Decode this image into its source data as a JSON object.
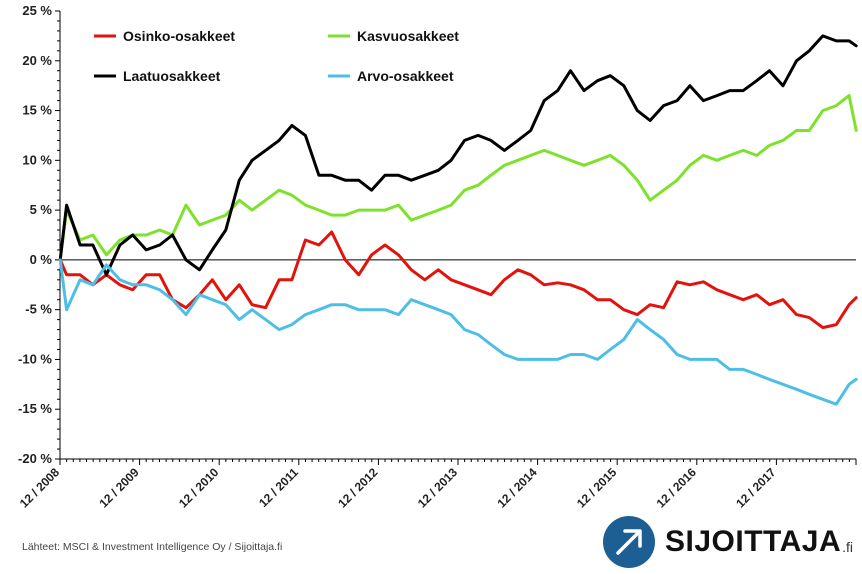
{
  "chart_data": {
    "type": "line",
    "title": "",
    "xlabel": "",
    "ylabel": "",
    "ylim": [
      -20,
      25
    ],
    "y_ticks": [
      "25 %",
      "20 %",
      "15 %",
      "10 %",
      "5 %",
      "0 %",
      "-5 %",
      "-10 %",
      "-15 %",
      "-20 %"
    ],
    "y_tick_values": [
      25,
      20,
      15,
      10,
      5,
      0,
      -5,
      -10,
      -15,
      -20
    ],
    "x_range": [
      2008.917,
      2018.917
    ],
    "x_ticks": [
      "12 / 2008",
      "12 / 2009",
      "12 / 2010",
      "12 / 2011",
      "12 / 2012",
      "12 / 2013",
      "12 / 2014",
      "12 / 2015",
      "12 / 2016",
      "12 / 2017"
    ],
    "x_tick_values": [
      2008.917,
      2009.917,
      2010.917,
      2011.917,
      2012.917,
      2013.917,
      2014.917,
      2015.917,
      2016.917,
      2017.917
    ],
    "grid": false,
    "legend_placement": "top",
    "series": [
      {
        "name": "Osinko-osakkeet",
        "color": "#e3120b",
        "x": [
          2008.92,
          2009.0,
          2009.17,
          2009.33,
          2009.5,
          2009.67,
          2009.83,
          2010.0,
          2010.17,
          2010.33,
          2010.5,
          2010.67,
          2010.83,
          2011.0,
          2011.17,
          2011.33,
          2011.5,
          2011.67,
          2011.83,
          2012.0,
          2012.17,
          2012.33,
          2012.5,
          2012.67,
          2012.83,
          2013.0,
          2013.17,
          2013.33,
          2013.5,
          2013.67,
          2013.83,
          2014.0,
          2014.17,
          2014.33,
          2014.5,
          2014.67,
          2014.83,
          2015.0,
          2015.17,
          2015.33,
          2015.5,
          2015.67,
          2015.83,
          2016.0,
          2016.17,
          2016.33,
          2016.5,
          2016.67,
          2016.83,
          2017.0,
          2017.17,
          2017.33,
          2017.5,
          2017.67,
          2017.83,
          2018.0,
          2018.17,
          2018.33,
          2018.5,
          2018.67,
          2018.83,
          2018.92
        ],
        "y": [
          0,
          -1.5,
          -1.5,
          -2.5,
          -1.5,
          -2.5,
          -3,
          -1.5,
          -1.5,
          -4,
          -4.8,
          -3.5,
          -2,
          -4,
          -2.5,
          -4.5,
          -4.8,
          -2,
          -2,
          2,
          1.5,
          2.8,
          0,
          -1.5,
          0.5,
          1.5,
          0.5,
          -1,
          -2,
          -1,
          -2,
          -2.5,
          -3,
          -3.5,
          -2,
          -1,
          -1.5,
          -2.5,
          -2.3,
          -2.5,
          -3,
          -4,
          -4,
          -5,
          -5.5,
          -4.5,
          -4.8,
          -2.2,
          -2.5,
          -2.2,
          -3,
          -3.5,
          -4,
          -3.5,
          -4.5,
          -4,
          -5.5,
          -5.8,
          -6.8,
          -6.5,
          -4.5,
          -3.8
        ]
      },
      {
        "name": "Kasvuosakkeet",
        "color": "#7ee22b",
        "x": [
          2008.92,
          2009.0,
          2009.17,
          2009.33,
          2009.5,
          2009.67,
          2009.83,
          2010.0,
          2010.17,
          2010.33,
          2010.5,
          2010.67,
          2010.83,
          2011.0,
          2011.17,
          2011.33,
          2011.5,
          2011.67,
          2011.83,
          2012.0,
          2012.17,
          2012.33,
          2012.5,
          2012.67,
          2012.83,
          2013.0,
          2013.17,
          2013.33,
          2013.5,
          2013.67,
          2013.83,
          2014.0,
          2014.17,
          2014.33,
          2014.5,
          2014.67,
          2014.83,
          2015.0,
          2015.17,
          2015.33,
          2015.5,
          2015.67,
          2015.83,
          2016.0,
          2016.17,
          2016.33,
          2016.5,
          2016.67,
          2016.83,
          2017.0,
          2017.17,
          2017.33,
          2017.5,
          2017.67,
          2017.83,
          2018.0,
          2018.17,
          2018.33,
          2018.5,
          2018.67,
          2018.83,
          2018.92
        ],
        "y": [
          0,
          5,
          2,
          2.5,
          0.5,
          2,
          2.5,
          2.5,
          3,
          2.5,
          5.5,
          3.5,
          4,
          4.5,
          6,
          5,
          6,
          7,
          6.5,
          5.5,
          5,
          4.5,
          4.5,
          5,
          5,
          5,
          5.5,
          4,
          4.5,
          5,
          5.5,
          7,
          7.5,
          8.5,
          9.5,
          10,
          10.5,
          11,
          10.5,
          10,
          9.5,
          10,
          10.5,
          9.5,
          8,
          6,
          7,
          8,
          9.5,
          10.5,
          10,
          10.5,
          11,
          10.5,
          11.5,
          12,
          13,
          13,
          15,
          15.5,
          16.5,
          13
        ]
      },
      {
        "name": "Laatuosakkeet",
        "color": "#000000",
        "x": [
          2008.92,
          2009.0,
          2009.17,
          2009.33,
          2009.5,
          2009.67,
          2009.83,
          2010.0,
          2010.17,
          2010.33,
          2010.5,
          2010.67,
          2010.83,
          2011.0,
          2011.17,
          2011.33,
          2011.5,
          2011.67,
          2011.83,
          2012.0,
          2012.17,
          2012.33,
          2012.5,
          2012.67,
          2012.83,
          2013.0,
          2013.17,
          2013.33,
          2013.5,
          2013.67,
          2013.83,
          2014.0,
          2014.17,
          2014.33,
          2014.5,
          2014.67,
          2014.83,
          2015.0,
          2015.17,
          2015.33,
          2015.5,
          2015.67,
          2015.83,
          2016.0,
          2016.17,
          2016.33,
          2016.5,
          2016.67,
          2016.83,
          2017.0,
          2017.17,
          2017.33,
          2017.5,
          2017.67,
          2017.83,
          2018.0,
          2018.17,
          2018.33,
          2018.5,
          2018.67,
          2018.83,
          2018.92
        ],
        "y": [
          0,
          5.5,
          1.5,
          1.5,
          -1.5,
          1.5,
          2.5,
          1,
          1.5,
          2.5,
          0,
          -1,
          1,
          3,
          8,
          10,
          11,
          12,
          13.5,
          12.5,
          8.5,
          8.5,
          8,
          8,
          7,
          8.5,
          8.5,
          8,
          8.5,
          9,
          10,
          12,
          12.5,
          12,
          11,
          12,
          13,
          16,
          17,
          19,
          17,
          18,
          18.5,
          17.5,
          15,
          14,
          15.5,
          16,
          17.5,
          16,
          16.5,
          17,
          17,
          18,
          19,
          17.5,
          20,
          21,
          22.5,
          22,
          22,
          21.5
        ]
      },
      {
        "name": "Arvo-osakkeet",
        "color": "#4dbfe6",
        "x": [
          2008.92,
          2009.0,
          2009.17,
          2009.33,
          2009.5,
          2009.67,
          2009.83,
          2010.0,
          2010.17,
          2010.33,
          2010.5,
          2010.67,
          2010.83,
          2011.0,
          2011.17,
          2011.33,
          2011.5,
          2011.67,
          2011.83,
          2012.0,
          2012.17,
          2012.33,
          2012.5,
          2012.67,
          2012.83,
          2013.0,
          2013.17,
          2013.33,
          2013.5,
          2013.67,
          2013.83,
          2014.0,
          2014.17,
          2014.33,
          2014.5,
          2014.67,
          2014.83,
          2015.0,
          2015.17,
          2015.33,
          2015.5,
          2015.67,
          2015.83,
          2016.0,
          2016.17,
          2016.33,
          2016.5,
          2016.67,
          2016.83,
          2017.0,
          2017.17,
          2017.33,
          2017.5,
          2017.67,
          2017.83,
          2018.0,
          2018.17,
          2018.33,
          2018.5,
          2018.67,
          2018.83,
          2018.92
        ],
        "y": [
          0,
          -5,
          -2,
          -2.5,
          -0.5,
          -2,
          -2.5,
          -2.5,
          -3,
          -4,
          -5.5,
          -3.5,
          -4,
          -4.5,
          -6,
          -5,
          -6,
          -7,
          -6.5,
          -5.5,
          -5,
          -4.5,
          -4.5,
          -5,
          -5,
          -5,
          -5.5,
          -4,
          -4.5,
          -5,
          -5.5,
          -7,
          -7.5,
          -8.5,
          -9.5,
          -10,
          -10,
          -10,
          -10,
          -9.5,
          -9.5,
          -10,
          -9,
          -8,
          -6,
          -7,
          -8,
          -9.5,
          -10,
          -10,
          -10,
          -11,
          -11,
          -11.5,
          -12,
          -12.5,
          -13,
          -13.5,
          -14,
          -14.5,
          -12.5,
          -12
        ]
      }
    ]
  },
  "source_text": "Lähteet: MSCI & Investment Intelligence Oy / Sijoittaja.fi",
  "logo": {
    "name": "SIJOITTAJA",
    "suffix": ".fi",
    "icon": "arrow-up-right-icon",
    "color": "#1d5f93"
  }
}
